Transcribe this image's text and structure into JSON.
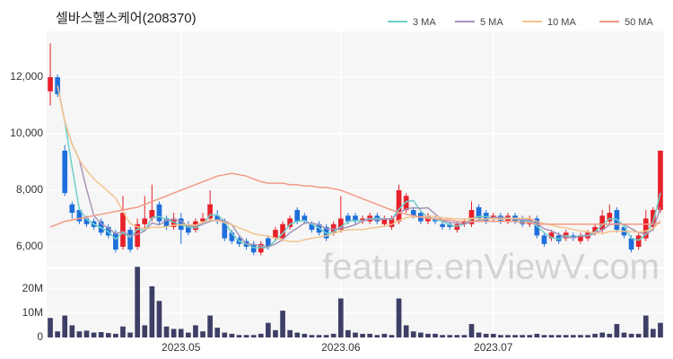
{
  "chart_data": {
    "type": "candlestick",
    "title": "셀바스헬스케어(208370)",
    "watermark": "feature.enViewV.com",
    "up_color": "#e8202a",
    "down_color": "#1e6fdc",
    "grid": true,
    "categories": [
      null,
      null,
      null,
      null,
      null,
      null,
      null,
      null,
      null,
      null,
      null,
      null,
      null,
      null,
      null,
      null,
      null,
      null,
      "2023.05",
      null,
      null,
      null,
      null,
      null,
      null,
      null,
      null,
      null,
      null,
      null,
      null,
      null,
      null,
      null,
      null,
      null,
      null,
      null,
      null,
      null,
      "2023.06",
      null,
      null,
      null,
      null,
      null,
      null,
      null,
      null,
      null,
      null,
      null,
      null,
      null,
      null,
      null,
      null,
      null,
      null,
      null,
      null,
      "2023.07",
      null,
      null,
      null,
      null,
      null,
      null,
      null,
      null,
      null,
      null,
      null,
      null,
      null,
      null,
      null,
      null,
      null,
      null,
      null,
      null,
      null,
      null,
      null
    ],
    "open": [
      11500,
      12000,
      9400,
      7500,
      7300,
      7000,
      6900,
      6900,
      6700,
      6500,
      6000,
      6600,
      6000,
      6800,
      7000,
      7500,
      7000,
      6700,
      7000,
      6800,
      6600,
      6900,
      7000,
      7100,
      6900,
      6500,
      6300,
      6200,
      6100,
      5800,
      6300,
      6300,
      6300,
      6700,
      7300,
      7100,
      6800,
      6800,
      6700,
      6500,
      6600,
      7100,
      7100,
      6900,
      6900,
      7100,
      6800,
      6700,
      6900,
      7300,
      7300,
      7200,
      6900,
      7000,
      6800,
      6800,
      6600,
      6800,
      6800,
      7400,
      7200,
      7000,
      7100,
      6900,
      7100,
      7000,
      6800,
      7000,
      6400,
      6300,
      6400,
      6300,
      6400,
      6200,
      6300,
      6500,
      6600,
      6900,
      7300,
      6700,
      6300,
      6000,
      6300,
      6700,
      7300
    ],
    "high": [
      13200,
      12100,
      9600,
      7600,
      7400,
      7100,
      7000,
      7000,
      6800,
      6600,
      7800,
      6700,
      7000,
      7800,
      8200,
      7600,
      7100,
      7200,
      7200,
      6900,
      7000,
      7200,
      8000,
      7300,
      7000,
      6600,
      6400,
      6300,
      6200,
      6200,
      6400,
      6700,
      6900,
      7100,
      7400,
      7200,
      6900,
      6900,
      6800,
      6900,
      7800,
      7200,
      7200,
      7100,
      7200,
      7200,
      7100,
      7100,
      8200,
      7900,
      7400,
      7300,
      7200,
      7100,
      6900,
      6900,
      6900,
      7000,
      7600,
      7500,
      7300,
      7200,
      7200,
      7200,
      7200,
      7100,
      7100,
      7100,
      6500,
      6600,
      6500,
      6600,
      6500,
      6500,
      6600,
      6800,
      7300,
      7500,
      7400,
      6800,
      6400,
      6500,
      7300,
      7400,
      9400
    ],
    "low": [
      11000,
      11300,
      7800,
      7000,
      6800,
      6700,
      6600,
      6400,
      6300,
      5800,
      5900,
      5800,
      5900,
      6600,
      6900,
      6800,
      6600,
      6600,
      6100,
      6400,
      6500,
      6800,
      6900,
      6800,
      6200,
      6100,
      6000,
      5900,
      5700,
      5700,
      5900,
      6200,
      6200,
      6600,
      6800,
      6800,
      6500,
      6400,
      6200,
      6400,
      6500,
      6800,
      6800,
      6800,
      6800,
      6800,
      6700,
      6600,
      6800,
      7200,
      7000,
      6800,
      6800,
      6800,
      6600,
      6600,
      6500,
      6700,
      6700,
      6900,
      6800,
      6900,
      6800,
      6800,
      6800,
      6700,
      6700,
      6300,
      6000,
      6200,
      6100,
      6200,
      6200,
      6100,
      6200,
      6400,
      6500,
      6800,
      6500,
      6300,
      5800,
      5900,
      6200,
      6600,
      7200
    ],
    "close": [
      12000,
      11400,
      7900,
      7200,
      6900,
      6800,
      6700,
      6500,
      6400,
      5900,
      7200,
      5900,
      6800,
      7000,
      7300,
      6900,
      6700,
      7000,
      6600,
      6500,
      6900,
      7000,
      7500,
      6900,
      6300,
      6200,
      6100,
      6000,
      5800,
      6100,
      6000,
      6600,
      6800,
      7000,
      6900,
      6900,
      6600,
      6500,
      6300,
      6800,
      7000,
      6900,
      6900,
      7000,
      7100,
      6900,
      7000,
      7000,
      8000,
      7800,
      7100,
      6900,
      7100,
      6900,
      6700,
      6700,
      6800,
      6900,
      7300,
      7000,
      6900,
      7100,
      6900,
      7100,
      6900,
      6800,
      7000,
      6400,
      6100,
      6500,
      6200,
      6500,
      6300,
      6400,
      6500,
      6700,
      7100,
      7200,
      6600,
      6400,
      5900,
      6400,
      7000,
      7300,
      9400
    ],
    "ylim": [
      5300,
      13620
    ],
    "yticks": [
      {
        "value": 6000,
        "label": "6,000"
      },
      {
        "value": 8000,
        "label": "8,000"
      },
      {
        "value": 10000,
        "label": "10,000"
      },
      {
        "value": 12000,
        "label": "12,000"
      }
    ],
    "series": [
      {
        "name": "3 MA",
        "color": "#6fcfc9",
        "values": [
          null,
          11700,
          10430,
          8830,
          7330,
          6970,
          6800,
          6670,
          6530,
          6270,
          6500,
          6330,
          6630,
          6570,
          7030,
          7070,
          6970,
          6870,
          6770,
          6700,
          6670,
          6800,
          7130,
          7130,
          6900,
          6470,
          6200,
          6100,
          5970,
          5970,
          5970,
          6230,
          6470,
          6800,
          6900,
          6930,
          6800,
          6670,
          6470,
          6530,
          6700,
          6900,
          6930,
          6930,
          7000,
          7000,
          7000,
          6970,
          7330,
          7600,
          7630,
          7270,
          7030,
          6970,
          6900,
          6770,
          6730,
          6800,
          7000,
          7070,
          7070,
          7000,
          6970,
          7030,
          6970,
          6930,
          6900,
          6730,
          6500,
          6330,
          6270,
          6400,
          6330,
          6400,
          6400,
          6530,
          6770,
          7000,
          6970,
          6730,
          6300,
          6230,
          6430,
          6900,
          7900
        ]
      },
      {
        "name": "5 MA",
        "color": "#a894b8",
        "values": [
          null,
          11700,
          10430,
          9630,
          9080,
          8040,
          7100,
          6820,
          6660,
          6460,
          6540,
          6380,
          6440,
          6560,
          6840,
          6780,
          6940,
          6980,
          6900,
          6740,
          6740,
          6800,
          6900,
          6960,
          6920,
          6780,
          6400,
          6100,
          6080,
          6040,
          6000,
          6100,
          6260,
          6500,
          6660,
          6840,
          6840,
          6780,
          6640,
          6620,
          6640,
          6700,
          6780,
          6920,
          6980,
          6960,
          6980,
          7000,
          7200,
          7340,
          7380,
          7360,
          7380,
          7160,
          6940,
          6860,
          6840,
          6800,
          6880,
          6940,
          6980,
          7040,
          7040,
          7000,
          6980,
          6960,
          6940,
          6820,
          6640,
          6560,
          6440,
          6340,
          6320,
          6380,
          6380,
          6480,
          6600,
          6780,
          6820,
          6800,
          6640,
          6500,
          6460,
          6600,
          7400
        ]
      },
      {
        "name": "10 MA",
        "color": "#f2c48d",
        "values": [
          null,
          11700,
          10430,
          9630,
          9080,
          8700,
          8400,
          8170,
          7950,
          7720,
          7250,
          6820,
          6710,
          6640,
          6680,
          6690,
          6710,
          6760,
          6780,
          6790,
          6760,
          6870,
          6940,
          6930,
          6850,
          6780,
          6670,
          6570,
          6460,
          6410,
          6380,
          6310,
          6240,
          6190,
          6180,
          6250,
          6300,
          6340,
          6390,
          6470,
          6570,
          6600,
          6610,
          6610,
          6660,
          6690,
          6730,
          6790,
          6930,
          7030,
          7060,
          7060,
          7080,
          7070,
          7030,
          7010,
          6990,
          6980,
          7010,
          7000,
          6980,
          7000,
          6980,
          7000,
          7010,
          7010,
          7000,
          6900,
          6820,
          6770,
          6700,
          6670,
          6610,
          6560,
          6530,
          6500,
          6470,
          6540,
          6550,
          6550,
          6530,
          6520,
          6560,
          6650,
          6920
        ]
      },
      {
        "name": "50 MA",
        "color": "#f29a86",
        "values": [
          6700,
          6800,
          6900,
          6950,
          7000,
          7050,
          7100,
          7150,
          7200,
          7250,
          7300,
          7350,
          7400,
          7500,
          7600,
          7700,
          7800,
          7900,
          8000,
          8100,
          8200,
          8300,
          8400,
          8500,
          8550,
          8600,
          8550,
          8500,
          8400,
          8300,
          8250,
          8250,
          8250,
          8200,
          8200,
          8150,
          8150,
          8100,
          8100,
          8050,
          8000,
          7900,
          7800,
          7700,
          7600,
          7500,
          7400,
          7300,
          7200,
          7150,
          7100,
          7050,
          7000,
          7000,
          6950,
          6950,
          6900,
          6900,
          6900,
          6900,
          6900,
          6900,
          6900,
          6900,
          6900,
          6850,
          6850,
          6800,
          6800,
          6800,
          6800,
          6800,
          6800,
          6800,
          6800,
          6800,
          6800,
          6800,
          6800,
          6800,
          6800,
          6800,
          6800,
          6800,
          6850
        ]
      }
    ],
    "volume": {
      "color": "#3d3f66",
      "ylim": [
        0,
        28000000
      ],
      "yticks": [
        0,
        {
          "value": 10000000,
          "label": "10M"
        },
        {
          "value": 20000000,
          "label": "20M"
        }
      ],
      "values": [
        8000000,
        2500000,
        9000000,
        5000000,
        2500000,
        2800000,
        2000000,
        2200000,
        1800000,
        1500000,
        4500000,
        2000000,
        29000000,
        5000000,
        21000000,
        15000000,
        4500000,
        3500000,
        3500000,
        2000000,
        5000000,
        2500000,
        9000000,
        4000000,
        2000000,
        1500000,
        1000000,
        1000000,
        1000000,
        1500000,
        6000000,
        3000000,
        11000000,
        3000000,
        2000000,
        1500000,
        1000000,
        1000000,
        1000000,
        1500000,
        16000000,
        3000000,
        2000000,
        1500000,
        1500000,
        1000000,
        1500000,
        1000000,
        16000000,
        5000000,
        2500000,
        2000000,
        1500000,
        1500000,
        1000000,
        1000000,
        1000000,
        1000000,
        5500000,
        2000000,
        1500000,
        1500000,
        1000000,
        1000000,
        1000000,
        1000000,
        1000000,
        1500000,
        1000000,
        1000000,
        1000000,
        1000000,
        1000000,
        1000000,
        1000000,
        1500000,
        2000000,
        1500000,
        5500000,
        2000000,
        1500000,
        1500000,
        9000000,
        3500000,
        6000000
      ]
    }
  }
}
